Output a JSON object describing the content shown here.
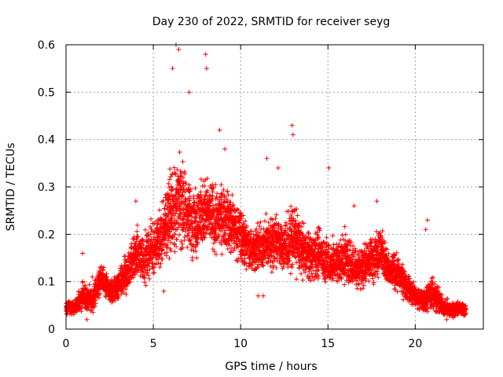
{
  "chart_data": {
    "type": "scatter",
    "title": "Day 230 of 2022, SRMTID for receiver seyg",
    "xlabel": "GPS time / hours",
    "ylabel": "SRMTID / TECUs",
    "xlim": [
      0,
      23.9
    ],
    "ylim": [
      0,
      0.6
    ],
    "xticks": [
      0,
      5,
      10,
      15,
      20
    ],
    "xtick_labels": [
      "0",
      "5",
      "10",
      "15",
      "20"
    ],
    "yticks": [
      0,
      0.1,
      0.2,
      0.3,
      0.4,
      0.5,
      0.6
    ],
    "ytick_labels": [
      "0",
      "0.1",
      "0.2",
      "0.3",
      "0.4",
      "0.5",
      "0.6"
    ],
    "grid": true,
    "marker": "+",
    "color": "#ff0000",
    "series": [
      {
        "name": "SRMTID",
        "envelope_hours": [
          0,
          0.5,
          1,
          1.5,
          2,
          2.5,
          3,
          3.5,
          4,
          4.5,
          5,
          5.5,
          6,
          6.5,
          7,
          7.5,
          8,
          8.5,
          9,
          9.5,
          10,
          10.5,
          11,
          11.5,
          12,
          12.5,
          13,
          13.5,
          14,
          14.5,
          15,
          15.5,
          16,
          16.5,
          17,
          17.5,
          18,
          18.5,
          19,
          19.5,
          20,
          20.5,
          21,
          21.5,
          22,
          22.5,
          22.9
        ],
        "median": [
          0.045,
          0.045,
          0.07,
          0.06,
          0.11,
          0.08,
          0.09,
          0.12,
          0.16,
          0.15,
          0.17,
          0.2,
          0.25,
          0.27,
          0.24,
          0.23,
          0.25,
          0.23,
          0.24,
          0.22,
          0.2,
          0.17,
          0.17,
          0.18,
          0.19,
          0.17,
          0.2,
          0.17,
          0.15,
          0.16,
          0.14,
          0.14,
          0.15,
          0.13,
          0.13,
          0.15,
          0.17,
          0.12,
          0.12,
          0.09,
          0.07,
          0.06,
          0.08,
          0.05,
          0.04,
          0.045,
          0.04
        ],
        "spread": [
          0.015,
          0.02,
          0.04,
          0.03,
          0.04,
          0.03,
          0.04,
          0.06,
          0.07,
          0.07,
          0.08,
          0.09,
          0.12,
          0.13,
          0.11,
          0.1,
          0.1,
          0.09,
          0.09,
          0.08,
          0.08,
          0.07,
          0.07,
          0.07,
          0.08,
          0.07,
          0.1,
          0.07,
          0.07,
          0.07,
          0.07,
          0.06,
          0.07,
          0.06,
          0.06,
          0.07,
          0.07,
          0.05,
          0.05,
          0.04,
          0.03,
          0.03,
          0.06,
          0.03,
          0.02,
          0.02,
          0.02
        ],
        "peaks": [
          {
            "x": 6.3,
            "y": 0.6
          },
          {
            "x": 6.45,
            "y": 0.59
          },
          {
            "x": 6.1,
            "y": 0.55
          },
          {
            "x": 8.0,
            "y": 0.58
          },
          {
            "x": 8.05,
            "y": 0.55
          },
          {
            "x": 7.05,
            "y": 0.5
          },
          {
            "x": 12.95,
            "y": 0.43
          },
          {
            "x": 13.0,
            "y": 0.41
          },
          {
            "x": 8.8,
            "y": 0.42
          },
          {
            "x": 11.5,
            "y": 0.36
          },
          {
            "x": 15.05,
            "y": 0.34
          },
          {
            "x": 9.1,
            "y": 0.38
          },
          {
            "x": 12.15,
            "y": 0.34
          },
          {
            "x": 20.7,
            "y": 0.23
          },
          {
            "x": 20.6,
            "y": 0.21
          },
          {
            "x": 17.8,
            "y": 0.27
          },
          {
            "x": 16.5,
            "y": 0.26
          },
          {
            "x": 0.95,
            "y": 0.16
          },
          {
            "x": 1.5,
            "y": 0.11
          },
          {
            "x": 4.0,
            "y": 0.27
          },
          {
            "x": 1.2,
            "y": 0.02
          },
          {
            "x": 11.0,
            "y": 0.07
          },
          {
            "x": 11.3,
            "y": 0.07
          },
          {
            "x": 5.6,
            "y": 0.08
          },
          {
            "x": 21.8,
            "y": 0.02
          }
        ]
      }
    ]
  }
}
